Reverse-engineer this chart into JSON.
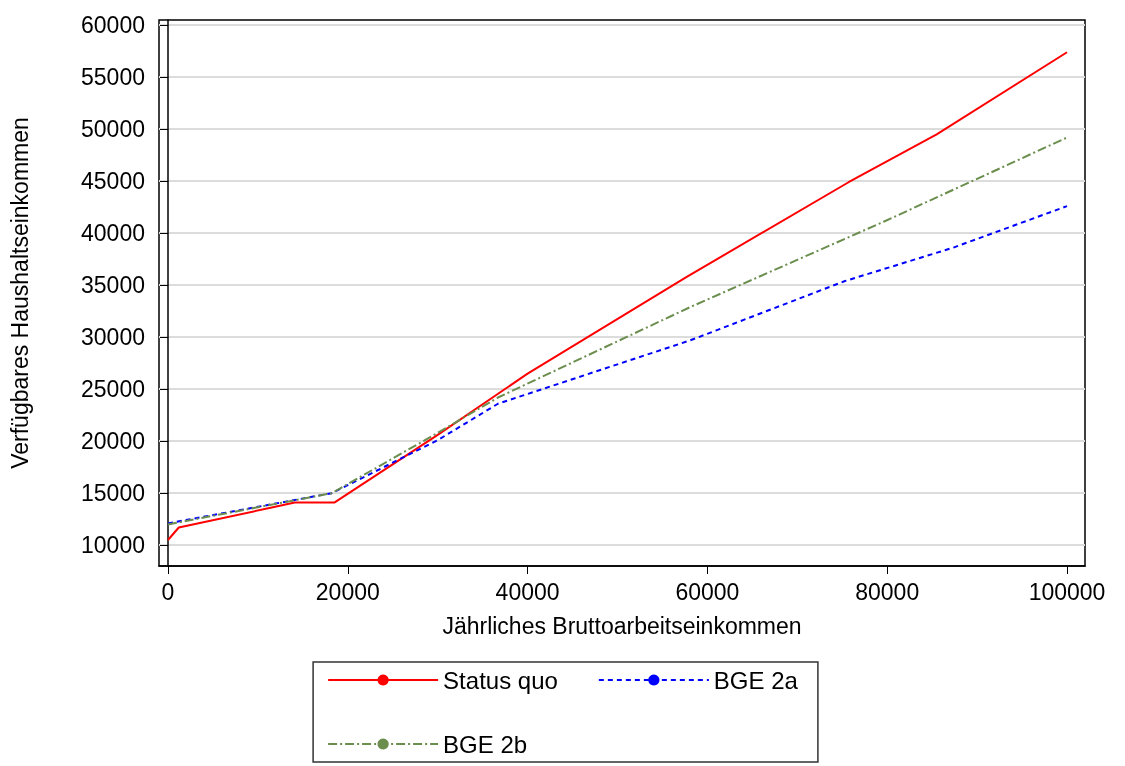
{
  "chart_data": {
    "type": "line",
    "xlabel": "Jährliches Bruttoarbeitseinkommen",
    "ylabel": "Verfügbares Haushaltseinkommen",
    "xlim": [
      -1000,
      102000
    ],
    "xticks": [
      0,
      20000,
      40000,
      60000,
      80000,
      100000
    ],
    "ylim": [
      8000,
      60500
    ],
    "yticks": [
      10000,
      15000,
      20000,
      25000,
      30000,
      35000,
      40000,
      45000,
      50000,
      55000,
      60000
    ],
    "grid": "y",
    "legend": "bottom",
    "marker": "none",
    "series": [
      {
        "name": "Status quo",
        "color": "#ff0000",
        "line_style": "solid",
        "x": [
          0,
          1200,
          14100,
          18500,
          30000,
          40000,
          57700,
          75700,
          85500,
          100000
        ],
        "values": [
          10500,
          11700,
          14100,
          14100,
          20600,
          26500,
          35800,
          44900,
          49500,
          57400
        ]
      },
      {
        "name": "BGE 2a",
        "color": "#0000ff",
        "line_style": "dotted",
        "x": [
          0,
          18200,
          30000,
          36700,
          58100,
          75300,
          87300,
          100000
        ],
        "values": [
          12100,
          15000,
          20100,
          23600,
          29700,
          35400,
          38600,
          42600
        ]
      },
      {
        "name": "BGE 2b",
        "color": "#6b8e4e",
        "line_style": "dashed",
        "x": [
          0,
          18200,
          30000,
          36700,
          58100,
          79600,
          100000
        ],
        "values": [
          12000,
          15000,
          20800,
          24200,
          32900,
          41100,
          49200
        ]
      }
    ]
  }
}
